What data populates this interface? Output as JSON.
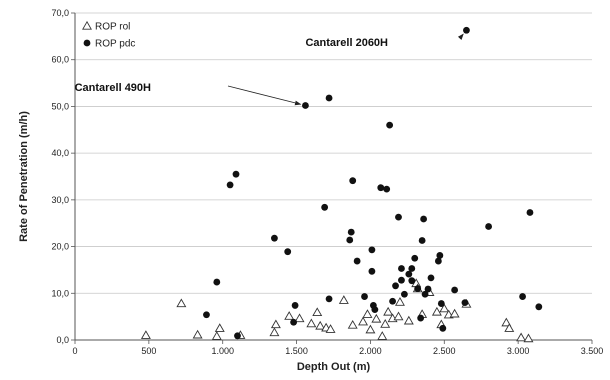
{
  "chart_data": {
    "type": "scatter",
    "xlabel": "Depth Out (m)",
    "ylabel": "Rate of Penetration (m/h)",
    "xlim": [
      0,
      3500
    ],
    "ylim": [
      0,
      70
    ],
    "x_ticks": [
      "0",
      "500",
      "1.000",
      "1.500",
      "2.000",
      "2.500",
      "3.000",
      "3.500"
    ],
    "y_ticks": [
      "0,0",
      "10,0",
      "20,0",
      "30,0",
      "40,0",
      "50,0",
      "60,0",
      "70,0"
    ],
    "grid": "horizontal",
    "legend_position": "top-left",
    "series": [
      {
        "name": "ROP rol",
        "marker": "open-triangle",
        "color": "#333333",
        "points": [
          [
            480,
            1.0
          ],
          [
            720,
            7.8
          ],
          [
            830,
            1.1
          ],
          [
            960,
            0.8
          ],
          [
            980,
            2.5
          ],
          [
            1120,
            1.0
          ],
          [
            1350,
            1.6
          ],
          [
            1360,
            3.3
          ],
          [
            1450,
            5.1
          ],
          [
            1520,
            4.6
          ],
          [
            1600,
            3.5
          ],
          [
            1640,
            5.9
          ],
          [
            1660,
            3.0
          ],
          [
            1700,
            2.6
          ],
          [
            1730,
            2.3
          ],
          [
            1820,
            8.5
          ],
          [
            1880,
            3.2
          ],
          [
            1950,
            3.9
          ],
          [
            1980,
            5.5
          ],
          [
            2000,
            2.2
          ],
          [
            2040,
            4.5
          ],
          [
            2080,
            0.8
          ],
          [
            2100,
            3.4
          ],
          [
            2120,
            6.0
          ],
          [
            2150,
            4.6
          ],
          [
            2190,
            5.0
          ],
          [
            2200,
            8.1
          ],
          [
            2260,
            4.1
          ],
          [
            2310,
            12.1
          ],
          [
            2320,
            11.0
          ],
          [
            2350,
            5.5
          ],
          [
            2400,
            10.2
          ],
          [
            2450,
            6.0
          ],
          [
            2480,
            3.3
          ],
          [
            2500,
            6.7
          ],
          [
            2530,
            5.4
          ],
          [
            2570,
            5.6
          ],
          [
            2650,
            7.7
          ],
          [
            2920,
            3.7
          ],
          [
            2940,
            2.5
          ],
          [
            3020,
            0.5
          ],
          [
            3070,
            0.3
          ]
        ]
      },
      {
        "name": "ROP pdc",
        "marker": "filled-circle",
        "color": "#111111",
        "points": [
          [
            890,
            5.4
          ],
          [
            960,
            12.4
          ],
          [
            1050,
            33.2
          ],
          [
            1090,
            35.5
          ],
          [
            1100,
            0.9
          ],
          [
            1350,
            21.8
          ],
          [
            1440,
            18.9
          ],
          [
            1480,
            3.8
          ],
          [
            1490,
            7.4
          ],
          [
            1560,
            50.2
          ],
          [
            1690,
            28.4
          ],
          [
            1720,
            51.8
          ],
          [
            1720,
            8.8
          ],
          [
            1860,
            21.4
          ],
          [
            1870,
            23.1
          ],
          [
            1880,
            34.1
          ],
          [
            1910,
            16.9
          ],
          [
            1960,
            9.3
          ],
          [
            2010,
            19.3
          ],
          [
            2010,
            14.7
          ],
          [
            2020,
            7.4
          ],
          [
            2030,
            6.5
          ],
          [
            2070,
            32.6
          ],
          [
            2110,
            32.3
          ],
          [
            2130,
            46.0
          ],
          [
            2150,
            8.3
          ],
          [
            2170,
            11.6
          ],
          [
            2190,
            26.3
          ],
          [
            2210,
            12.8
          ],
          [
            2210,
            15.3
          ],
          [
            2230,
            9.8
          ],
          [
            2260,
            14.1
          ],
          [
            2280,
            15.3
          ],
          [
            2280,
            12.7
          ],
          [
            2300,
            17.5
          ],
          [
            2320,
            11.0
          ],
          [
            2340,
            4.7
          ],
          [
            2350,
            21.3
          ],
          [
            2360,
            25.9
          ],
          [
            2370,
            9.8
          ],
          [
            2390,
            10.9
          ],
          [
            2410,
            13.3
          ],
          [
            2460,
            16.9
          ],
          [
            2470,
            18.1
          ],
          [
            2480,
            7.8
          ],
          [
            2490,
            2.5
          ],
          [
            2570,
            10.7
          ],
          [
            2640,
            8.0
          ],
          [
            2650,
            66.3
          ],
          [
            2800,
            24.3
          ],
          [
            3030,
            9.3
          ],
          [
            3080,
            27.3
          ],
          [
            3140,
            7.1
          ]
        ]
      }
    ],
    "annotations": [
      {
        "text": "Cantarell 2060H",
        "target": [
          2650,
          66.3
        ]
      },
      {
        "text": "Cantarell 490H",
        "target": [
          1560,
          50.2
        ]
      }
    ]
  }
}
